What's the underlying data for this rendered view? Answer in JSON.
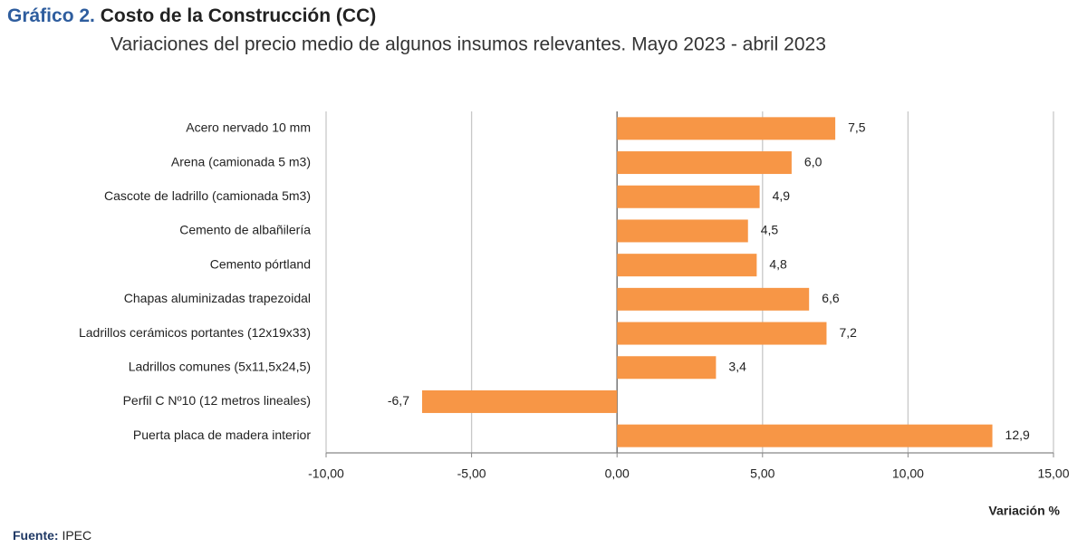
{
  "chart_data": {
    "type": "bar",
    "orientation": "horizontal",
    "title_prefix": "Gráfico 2.",
    "title": "Costo de la Construcción (CC)",
    "subtitle": "Variaciones del precio medio de algunos insumos relevantes. Mayo 2023 - abril 2023",
    "categories": [
      "Acero nervado 10 mm",
      "Arena (camionada 5 m3)",
      "Cascote de ladrillo (camionada 5m3)",
      "Cemento de albañilería",
      "Cemento pórtland",
      "Chapas aluminizadas trapezoidal",
      "Ladrillos cerámicos portantes (12x19x33)",
      "Ladrillos comunes (5x11,5x24,5)",
      "Perfil C Nº10 (12 metros  lineales)",
      "Puerta placa de madera interior"
    ],
    "values": [
      7.5,
      6.0,
      4.9,
      4.5,
      4.8,
      6.6,
      7.2,
      3.4,
      -6.7,
      12.9
    ],
    "value_labels": [
      "7,5",
      "6,0",
      "4,9",
      "4,5",
      "4,8",
      "6,6",
      "7,2",
      "3,4",
      "-6,7",
      "12,9"
    ],
    "color": "#f79646",
    "xlim": [
      -10,
      15
    ],
    "xticks": [
      {
        "value": -10,
        "label": "-10,00"
      },
      {
        "value": -5,
        "label": "-5,00"
      },
      {
        "value": 0,
        "label": "0,00"
      },
      {
        "value": 5,
        "label": "5,00"
      },
      {
        "value": 10,
        "label": "10,00"
      },
      {
        "value": 15,
        "label": "15,00"
      }
    ],
    "xlabel": "Variación %",
    "grid": true,
    "source_label": "Fuente:",
    "source": "IPEC"
  }
}
